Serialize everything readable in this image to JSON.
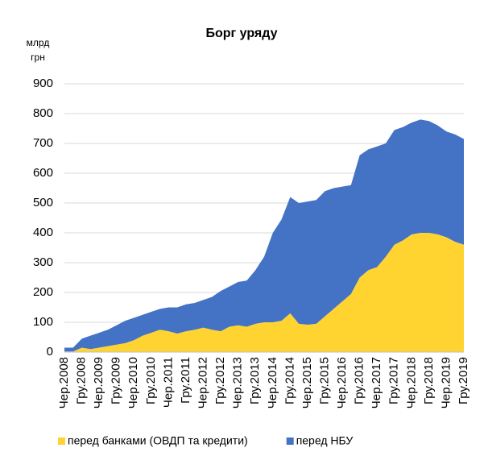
{
  "chart_data": {
    "type": "stacked_area",
    "title": "Борг уряду",
    "y_label": "млрд грн",
    "categories": [
      "Чер.2008",
      null,
      "Гру.2008",
      null,
      "Чер.2009",
      null,
      "Гру.2009",
      null,
      "Чер.2010",
      null,
      "Гру.2010",
      null,
      "Чер.2011",
      null,
      "Гру.2011",
      null,
      "Чер.2012",
      null,
      "Гру.2012",
      null,
      "Чер.2013",
      null,
      "Гру.2013",
      null,
      "Чер.2014",
      null,
      "Гру.2014",
      null,
      "Чер.2015",
      null,
      "Гру.2015",
      null,
      "Чер.2016",
      null,
      "Гру.2016",
      null,
      "Чер.2017",
      null,
      "Гру.2017",
      null,
      "Чер.2018",
      null,
      "Гру.2018",
      null,
      "Чер.2019",
      null,
      "Гру.2019"
    ],
    "series": [
      {
        "name": "перед банками (ОВДП та кредити)",
        "color": "#ffd430",
        "values": [
          2,
          2,
          15,
          10,
          15,
          20,
          25,
          30,
          40,
          55,
          65,
          75,
          70,
          62,
          70,
          75,
          82,
          75,
          70,
          85,
          90,
          85,
          95,
          100,
          100,
          105,
          130,
          95,
          92,
          95,
          120,
          145,
          170,
          195,
          250,
          275,
          285,
          320,
          360,
          375,
          395,
          400,
          400,
          395,
          385,
          370,
          360
        ]
      },
      {
        "name": "перед НБУ",
        "color": "#4472c4",
        "values": [
          13,
          13,
          30,
          45,
          50,
          55,
          65,
          75,
          75,
          70,
          70,
          70,
          80,
          88,
          90,
          90,
          93,
          110,
          135,
          135,
          145,
          155,
          180,
          220,
          300,
          340,
          390,
          405,
          413,
          415,
          420,
          405,
          385,
          365,
          410,
          405,
          405,
          380,
          385,
          380,
          375,
          380,
          375,
          365,
          355,
          360,
          355
        ]
      }
    ],
    "ylim": [
      0,
      900
    ],
    "yticks": [
      0,
      100,
      200,
      300,
      400,
      500,
      600,
      700,
      800,
      900
    ],
    "grid": true,
    "legend": "bottom"
  }
}
